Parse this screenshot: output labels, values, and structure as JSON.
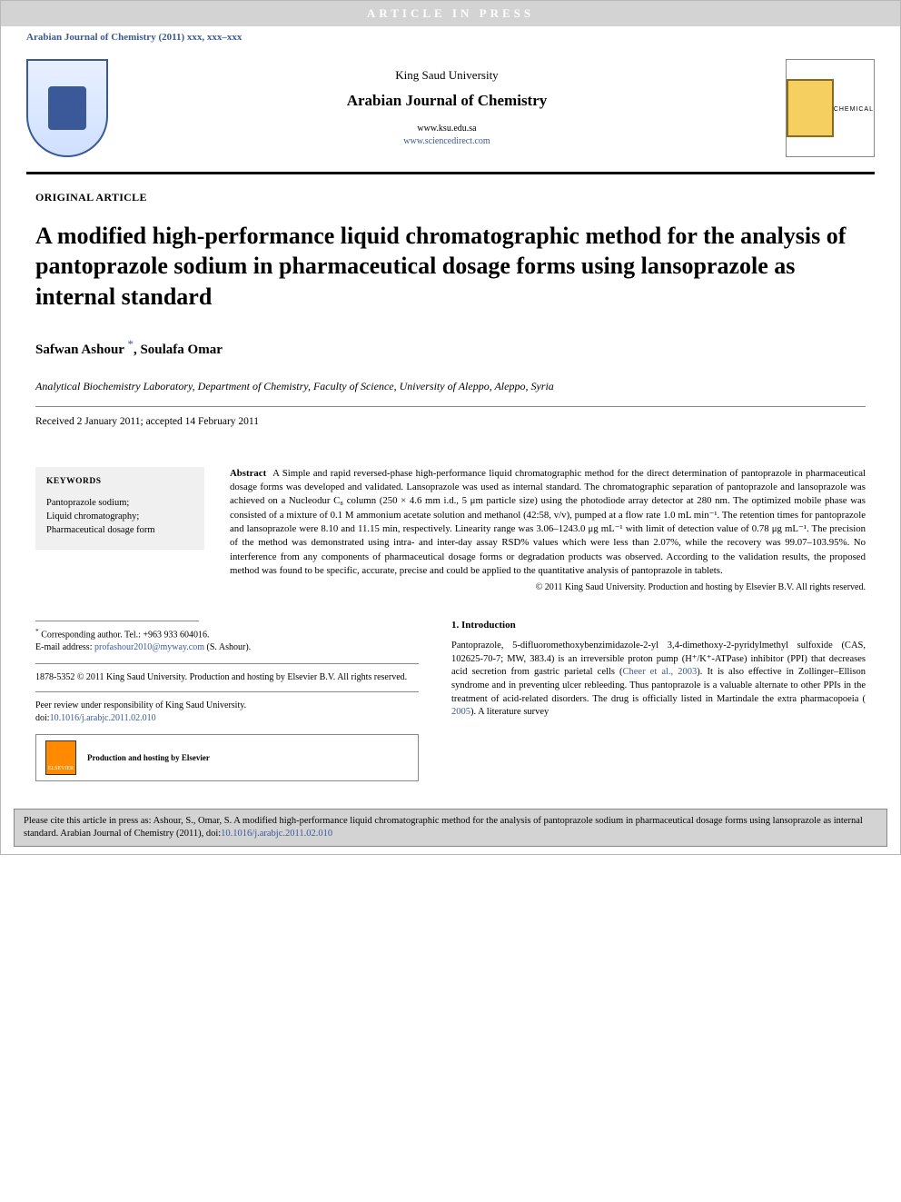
{
  "banner": {
    "text": "ARTICLE IN PRESS"
  },
  "header_citation": "Arabian Journal of Chemistry (2011) xxx, xxx–xxx",
  "journal": {
    "university": "King Saud University",
    "name": "Arabian Journal of Chemistry",
    "link1": "www.ksu.edu.sa",
    "link2": "www.sciencedirect.com",
    "logo_right_label": "CHEMICAL"
  },
  "article_type": "ORIGINAL ARTICLE",
  "title": "A modified high-performance liquid chromatographic method for the analysis of pantoprazole sodium in pharmaceutical dosage forms using lansoprazole as internal standard",
  "authors": {
    "a1": "Safwan Ashour ",
    "star": "*",
    "sep": ", ",
    "a2": "Soulafa Omar"
  },
  "affiliation": "Analytical Biochemistry Laboratory, Department of Chemistry, Faculty of Science, University of Aleppo, Aleppo, Syria",
  "dates": "Received 2 January 2011; accepted 14 February 2011",
  "keywords": {
    "heading": "KEYWORDS",
    "k1": "Pantoprazole sodium;",
    "k2": "Liquid chromatography;",
    "k3": "Pharmaceutical dosage form"
  },
  "abstract": {
    "label": "Abstract",
    "body": "A Simple and rapid reversed-phase high-performance liquid chromatographic method for the direct determination of pantoprazole in pharmaceutical dosage forms was developed and validated. Lansoprazole was used as internal standard. The chromatographic separation of pantoprazole and lansoprazole was achieved on a Nucleodur C₈ column (250 × 4.6 mm i.d., 5 μm particle size) using the photodiode array detector at 280 nm. The optimized mobile phase was consisted of a mixture of 0.1 M ammonium acetate solution and methanol (42:58, v/v), pumped at a flow rate 1.0 mL min⁻¹. The retention times for pantoprazole and lansoprazole were 8.10 and 11.15 min, respectively. Linearity range was 3.06–1243.0 μg mL⁻¹ with limit of detection value of 0.78 μg mL⁻¹. The precision of the method was demonstrated using intra- and inter-day assay RSD% values which were less than 2.07%, while the recovery was 99.07–103.95%. No interference from any components of pharmaceutical dosage forms or degradation products was observed. According to the validation results, the proposed method was found to be specific, accurate, precise and could be applied to the quantitative analysis of pantoprazole in tablets.",
    "copyright": "© 2011 King Saud University. Production and hosting by Elsevier B.V. All rights reserved."
  },
  "correspondence": {
    "star": "*",
    "line1": " Corresponding author. Tel.: +963 933 604016.",
    "line2a": "E-mail address: ",
    "email": "profashour2010@myway.com",
    "line2b": " (S. Ashour)."
  },
  "issn_copyright": "1878-5352 © 2011 King Saud University. Production and hosting by Elsevier B.V. All rights reserved.",
  "peer_review": {
    "text": "Peer review under responsibility of King Saud University.",
    "doi_label": "doi:",
    "doi": "10.1016/j.arabjc.2011.02.010"
  },
  "elsevier": {
    "logo_label": "ELSEVIER",
    "text": "Production and hosting by Elsevier"
  },
  "introduction": {
    "heading": "1. Introduction",
    "body_a": "Pantoprazole, 5-difluoromethoxybenzimidazole-2-yl 3,4-dimethoxy-2-pyridylmethyl sulfoxide (CAS, 102625-70-7; MW, 383.4) is an irreversible proton pump (H⁺/K⁺-ATPase) inhibitor (PPI) that decreases acid secretion from gastric parietal cells (",
    "ref1": "Cheer et al., 2003",
    "body_b": "). It is also effective in Zollinger–Ellison syndrome and in preventing ulcer rebleeding. Thus pantoprazole is a valuable alternate to other PPIs in the treatment of acid-related disorders. The drug is officially listed in Martindale the extra pharmacopoeia ( ",
    "ref2": "2005",
    "body_c": "). A literature survey"
  },
  "cite_footer": {
    "text_a": "Please cite this article in press as: Ashour, S., Omar, S. A modified high-performance liquid chromatographic method for the analysis of pantoprazole sodium in pharmaceutical dosage forms using lansoprazole as internal standard. Arabian Journal of Chemistry (2011), doi:",
    "doi": "10.1016/j.arabjc.2011.02.010"
  },
  "colors": {
    "banner_bg": "#d3d3d3",
    "link": "#3b5998",
    "rule": "#000000",
    "keywords_bg": "#f0f0f0",
    "border_gray": "#888888"
  }
}
